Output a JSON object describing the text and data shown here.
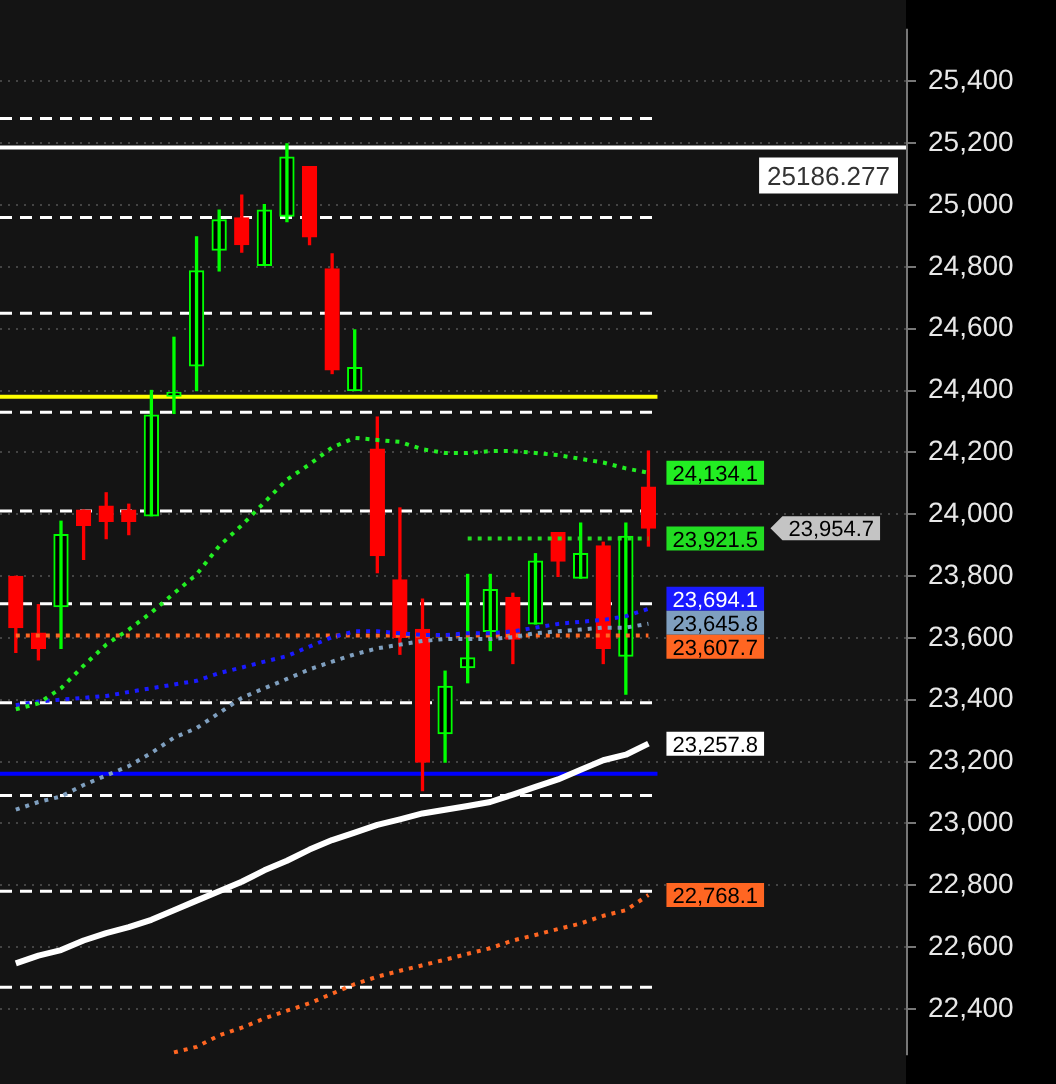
{
  "chart_data": {
    "type": "candlestick",
    "categories": [
      null,
      null,
      null,
      null,
      null,
      null,
      null,
      null,
      null,
      null,
      null,
      null,
      null,
      null,
      null,
      null,
      null,
      null,
      null,
      null,
      null,
      null,
      null,
      null,
      null,
      null,
      null,
      null,
      null
    ],
    "ohlc": [
      [
        23799,
        23799,
        23553,
        23633
      ],
      [
        23615,
        23707,
        23529,
        23566
      ],
      [
        23701,
        23977,
        23566,
        23934
      ],
      [
        24013,
        24013,
        23854,
        23964
      ],
      [
        24026,
        24069,
        23921,
        23977
      ],
      [
        24013,
        24032,
        23934,
        23977
      ],
      [
        23995,
        24400,
        23995,
        24320
      ],
      [
        24382,
        24572,
        24326,
        24394
      ],
      [
        24480,
        24897,
        24400,
        24787
      ],
      [
        24854,
        24983,
        24787,
        24952
      ],
      [
        24958,
        25032,
        24848,
        24872
      ],
      [
        24805,
        25001,
        24805,
        24983
      ],
      [
        24964,
        25198,
        24946,
        25155
      ],
      [
        25124,
        25124,
        24872,
        24897
      ],
      [
        24793,
        24842,
        24455,
        24467
      ],
      [
        24400,
        24596,
        24400,
        24474
      ],
      [
        24210,
        24314,
        23811,
        23866
      ],
      [
        23787,
        24020,
        23547,
        23602
      ],
      [
        23627,
        23725,
        23106,
        23198
      ],
      [
        23290,
        23492,
        23198,
        23443
      ],
      [
        23504,
        23805,
        23455,
        23535
      ],
      [
        23621,
        23805,
        23559,
        23756
      ],
      [
        23731,
        23744,
        23517,
        23596
      ],
      [
        23645,
        23872,
        23645,
        23848
      ],
      [
        23940,
        23940,
        23799,
        23848
      ],
      [
        23793,
        23971,
        23793,
        23872
      ],
      [
        23897,
        23909,
        23517,
        23566
      ],
      [
        23541,
        23971,
        23418,
        23928
      ],
      [
        24087,
        24204,
        23897,
        23954.7
      ]
    ],
    "colors": [
      "#ff0000",
      "#ff0000",
      "#00ff00",
      "#ff0000",
      "#ff0000",
      "#ff0000",
      "#00ff00",
      "#00ff00",
      "#00ff00",
      "#00ff00",
      "#ff0000",
      "#00ff00",
      "#00ff00",
      "#ff0000",
      "#ff0000",
      "#00ff00",
      "#ff0000",
      "#ff0000",
      "#ff0000",
      "#00ff00",
      "#00ff00",
      "#00ff00",
      "#ff0000",
      "#00ff00",
      "#ff0000",
      "#00ff00",
      "#ff0000",
      "#00ff00",
      "#ff0000"
    ],
    "series": [
      {
        "type": "line",
        "color": "#22ee22",
        "line_style": "dotted",
        "values": [
          23369,
          23388,
          23437,
          23510,
          23578,
          23627,
          23682,
          23744,
          23805,
          23897,
          23964,
          24038,
          24112,
          24161,
          24216,
          24247,
          24240,
          24234,
          24210,
          24198,
          24198,
          24204,
          24204,
          24198,
          24191,
          24179,
          24167,
          24148,
          24134.1
        ],
        "value_labels": [
          null,
          null,
          null,
          null,
          null,
          null,
          null,
          null,
          null,
          null,
          null,
          null,
          null,
          null,
          null,
          null,
          null,
          null,
          null,
          null,
          null,
          null,
          null,
          null,
          null,
          null,
          null,
          null,
          "24,134.1"
        ]
      },
      {
        "type": "line",
        "color": "#1a1aff",
        "line_style": "dotted",
        "values": [
          23382,
          23394,
          23400,
          23406,
          23412,
          23425,
          23437,
          23449,
          23461,
          23486,
          23504,
          23523,
          23541,
          23572,
          23602,
          23621,
          23621,
          23615,
          23609,
          23609,
          23615,
          23615,
          23621,
          23633,
          23645,
          23652,
          23658,
          23670,
          23694.1
        ],
        "value_labels": [
          null,
          null,
          null,
          null,
          null,
          null,
          null,
          null,
          null,
          null,
          null,
          null,
          null,
          null,
          null,
          null,
          null,
          null,
          null,
          null,
          null,
          null,
          null,
          null,
          null,
          null,
          null,
          null,
          "23,694.1"
        ]
      },
      {
        "type": "line",
        "color": "#7f9fbf",
        "line_style": "dotted",
        "values": [
          23044,
          23069,
          23087,
          23124,
          23155,
          23185,
          23228,
          23277,
          23308,
          23357,
          23406,
          23437,
          23467,
          23498,
          23523,
          23547,
          23566,
          23578,
          23590,
          23596,
          23596,
          23596,
          23602,
          23615,
          23621,
          23627,
          23633,
          23633,
          23645.8
        ],
        "value_labels": [
          null,
          null,
          null,
          null,
          null,
          null,
          null,
          null,
          null,
          null,
          null,
          null,
          null,
          null,
          null,
          null,
          null,
          null,
          null,
          null,
          null,
          null,
          null,
          null,
          null,
          null,
          null,
          null,
          "23,645.8"
        ]
      },
      {
        "type": "line",
        "color": "#ffffff",
        "line_style": "solid",
        "values": [
          22547,
          22572,
          22590,
          22621,
          22645,
          22664,
          22688,
          22719,
          22750,
          22780,
          22811,
          22848,
          22879,
          22915,
          22946,
          22970,
          22995,
          23013,
          23032,
          23044,
          23056,
          23069,
          23093,
          23118,
          23142,
          23173,
          23204,
          23222,
          23257.8
        ],
        "value_labels": [
          null,
          null,
          null,
          null,
          null,
          null,
          null,
          null,
          null,
          null,
          null,
          null,
          null,
          null,
          null,
          null,
          null,
          null,
          null,
          null,
          null,
          null,
          null,
          null,
          null,
          null,
          null,
          null,
          "23,257.8"
        ]
      },
      {
        "type": "line",
        "color": "#ff6622",
        "line_style": "dotted",
        "values": [
          null,
          null,
          null,
          null,
          null,
          null,
          null,
          22259,
          22277,
          22314,
          22339,
          22369,
          22394,
          22418,
          22449,
          22480,
          22504,
          22523,
          22541,
          22559,
          22578,
          22596,
          22621,
          22639,
          22658,
          22676,
          22701,
          22719,
          22768.1
        ],
        "value_labels": [
          null,
          null,
          null,
          null,
          null,
          null,
          null,
          null,
          null,
          null,
          null,
          null,
          null,
          null,
          null,
          null,
          null,
          null,
          null,
          null,
          null,
          null,
          null,
          null,
          null,
          null,
          null,
          null,
          "22,768.1"
        ]
      },
      {
        "type": "line",
        "color": "#22dd22",
        "line_style": "dotted",
        "values": [
          null,
          null,
          null,
          null,
          null,
          null,
          null,
          null,
          null,
          null,
          null,
          null,
          null,
          null,
          null,
          null,
          null,
          null,
          null,
          null,
          23921.5,
          23921.5,
          23921.5,
          23921.5,
          23921.5,
          23921.5,
          23921.5,
          23921.5,
          23921.5
        ],
        "value_labels": [
          null,
          null,
          null,
          null,
          null,
          null,
          null,
          null,
          null,
          null,
          null,
          null,
          null,
          null,
          null,
          null,
          null,
          null,
          null,
          null,
          null,
          null,
          null,
          null,
          null,
          null,
          null,
          null,
          "23,921.5"
        ]
      },
      {
        "type": "line",
        "color": "#ff6622",
        "line_style": "dotted",
        "values": [
          23607.7,
          23607.7,
          23607.7,
          23607.7,
          23607.7,
          23607.7,
          23607.7,
          23607.7,
          23607.7,
          23607.7,
          23607.7,
          23607.7,
          23607.7,
          23607.7,
          23607.7,
          23607.7,
          23607.7,
          23607.7,
          23607.7,
          23607.7,
          23607.7,
          23607.7,
          23607.7,
          23607.7,
          23607.7,
          23607.7,
          23607.7,
          23607.7,
          23607.7
        ],
        "value_labels": [
          null,
          null,
          null,
          null,
          null,
          null,
          null,
          null,
          null,
          null,
          null,
          null,
          null,
          null,
          null,
          null,
          null,
          null,
          null,
          null,
          null,
          null,
          null,
          null,
          null,
          null,
          null,
          null,
          "23,607.7"
        ]
      }
    ],
    "ref_lines": [
      {
        "axis": "y",
        "value": 25280,
        "color": "#ffffff",
        "line_style": "dashed"
      },
      {
        "axis": "y",
        "value": 24960,
        "color": "#ffffff",
        "line_style": "dashed"
      },
      {
        "axis": "y",
        "value": 24650,
        "color": "#ffffff",
        "line_style": "dashed"
      },
      {
        "axis": "y",
        "value": 24330,
        "color": "#ffffff",
        "line_style": "dashed"
      },
      {
        "axis": "y",
        "value": 24010,
        "color": "#ffffff",
        "line_style": "dashed"
      },
      {
        "axis": "y",
        "value": 23710,
        "color": "#ffffff",
        "line_style": "dashed"
      },
      {
        "axis": "y",
        "value": 23390,
        "color": "#ffffff",
        "line_style": "dashed"
      },
      {
        "axis": "y",
        "value": 23090,
        "color": "#ffffff",
        "line_style": "dashed"
      },
      {
        "axis": "y",
        "value": 22780,
        "color": "#ffffff",
        "line_style": "dashed"
      },
      {
        "axis": "y",
        "value": 22470,
        "color": "#ffffff",
        "line_style": "dashed"
      },
      {
        "axis": "y",
        "value": 24380,
        "color": "#ffff00",
        "line_style": "solid"
      },
      {
        "axis": "y",
        "value": 23160,
        "color": "#0000ff",
        "line_style": "solid"
      },
      {
        "axis": "y",
        "value": 25186.277,
        "label": "25186.277",
        "color": "#ffffff",
        "line_style": "solid"
      }
    ],
    "annotations": [
      "23,954.7"
    ],
    "ylim": [
      22250,
      25570
    ],
    "yticks": [
      {
        "value": 22400,
        "label": "22,400"
      },
      {
        "value": 22600,
        "label": "22,600"
      },
      {
        "value": 22800,
        "label": "22,800"
      },
      {
        "value": 23000,
        "label": "23,000"
      },
      {
        "value": 23200,
        "label": "23,200"
      },
      {
        "value": 23400,
        "label": "23,400"
      },
      {
        "value": 23600,
        "label": "23,600"
      },
      {
        "value": 23800,
        "label": "23,800"
      },
      {
        "value": 24000,
        "label": "24,000"
      },
      {
        "value": 24200,
        "label": "24,200"
      },
      {
        "value": 24400,
        "label": "24,400"
      },
      {
        "value": 24600,
        "label": "24,600"
      },
      {
        "value": 24800,
        "label": "24,800"
      },
      {
        "value": 25000,
        "label": "25,000"
      },
      {
        "value": 25200,
        "label": "25,200"
      },
      {
        "value": 25400,
        "label": "25,400"
      }
    ],
    "grid": "y",
    "tick_labels": "y",
    "legend": false
  }
}
